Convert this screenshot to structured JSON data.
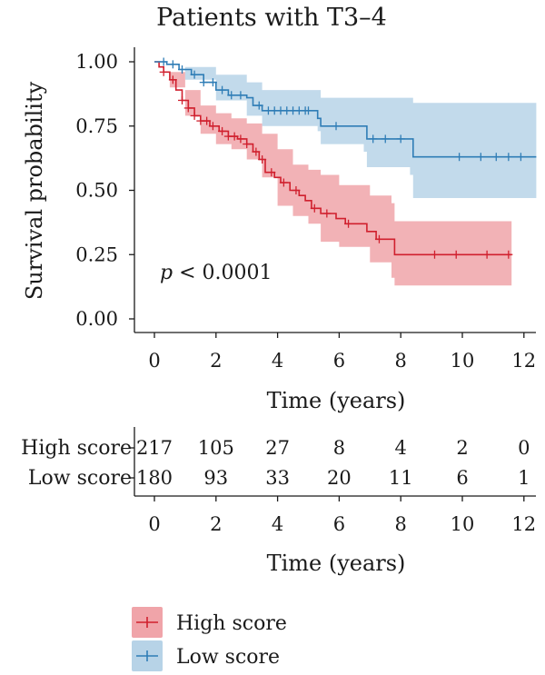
{
  "chart_data": {
    "type": "line",
    "subtype": "kaplan-meier",
    "title": "Patients with T3–4",
    "xlabel": "Time (years)",
    "ylabel": "Survival probability",
    "xlim": [
      0,
      12.4
    ],
    "ylim": [
      0,
      1.0
    ],
    "x_ticks": [
      "0",
      "2",
      "4",
      "6",
      "8",
      "10",
      "12"
    ],
    "y_ticks": [
      "0.00",
      "0.25",
      "0.50",
      "0.75",
      "1.00"
    ],
    "annotation": {
      "p_symbol": "p",
      "p_rest": " < 0.0001"
    },
    "grid": false,
    "legend_position": "bottom",
    "series": [
      {
        "name": "High score",
        "color": "#d0202e",
        "band_color": "#f0a4a9",
        "curve": [
          [
            0,
            1.0
          ],
          [
            0.15,
            0.98
          ],
          [
            0.3,
            0.96
          ],
          [
            0.5,
            0.93
          ],
          [
            0.7,
            0.89
          ],
          [
            0.9,
            0.85
          ],
          [
            1.1,
            0.82
          ],
          [
            1.3,
            0.79
          ],
          [
            1.5,
            0.77
          ],
          [
            1.8,
            0.75
          ],
          [
            2.1,
            0.73
          ],
          [
            2.4,
            0.71
          ],
          [
            2.7,
            0.7
          ],
          [
            3.0,
            0.68
          ],
          [
            3.2,
            0.65
          ],
          [
            3.4,
            0.62
          ],
          [
            3.6,
            0.57
          ],
          [
            3.9,
            0.55
          ],
          [
            4.1,
            0.53
          ],
          [
            4.4,
            0.5
          ],
          [
            4.7,
            0.48
          ],
          [
            4.9,
            0.46
          ],
          [
            5.1,
            0.43
          ],
          [
            5.4,
            0.41
          ],
          [
            5.9,
            0.39
          ],
          [
            6.2,
            0.37
          ],
          [
            6.9,
            0.34
          ],
          [
            7.2,
            0.31
          ],
          [
            7.8,
            0.25
          ],
          [
            11.6,
            0.25
          ]
        ],
        "upper": [
          [
            0,
            1.0
          ],
          [
            0.5,
            0.96
          ],
          [
            1.0,
            0.89
          ],
          [
            1.5,
            0.83
          ],
          [
            2.0,
            0.8
          ],
          [
            2.5,
            0.78
          ],
          [
            3.0,
            0.76
          ],
          [
            3.5,
            0.72
          ],
          [
            4.0,
            0.66
          ],
          [
            4.5,
            0.6
          ],
          [
            5.0,
            0.58
          ],
          [
            5.4,
            0.56
          ],
          [
            6.0,
            0.52
          ],
          [
            7.0,
            0.48
          ],
          [
            7.7,
            0.45
          ],
          [
            7.8,
            0.38
          ],
          [
            11.6,
            0.38
          ]
        ],
        "lower": [
          [
            0,
            1.0
          ],
          [
            0.5,
            0.9
          ],
          [
            1.0,
            0.79
          ],
          [
            1.5,
            0.72
          ],
          [
            2.0,
            0.68
          ],
          [
            2.5,
            0.66
          ],
          [
            3.0,
            0.62
          ],
          [
            3.5,
            0.55
          ],
          [
            4.0,
            0.44
          ],
          [
            4.5,
            0.4
          ],
          [
            5.0,
            0.37
          ],
          [
            5.4,
            0.3
          ],
          [
            6.0,
            0.28
          ],
          [
            7.0,
            0.22
          ],
          [
            7.7,
            0.16
          ],
          [
            7.8,
            0.13
          ],
          [
            11.6,
            0.13
          ]
        ],
        "censor_x": [
          0.3,
          0.6,
          0.9,
          1.1,
          1.3,
          1.5,
          1.7,
          1.9,
          2.2,
          2.4,
          2.6,
          2.8,
          3.0,
          3.3,
          3.5,
          3.8,
          4.2,
          4.6,
          5.2,
          5.6,
          6.3,
          7.3,
          9.1,
          9.8,
          10.8,
          11.5
        ]
      },
      {
        "name": "Low score",
        "color": "#2f7db6",
        "band_color": "#b7d3e7",
        "curve": [
          [
            0,
            1.0
          ],
          [
            0.4,
            0.99
          ],
          [
            0.8,
            0.97
          ],
          [
            1.2,
            0.95
          ],
          [
            1.6,
            0.92
          ],
          [
            2.0,
            0.89
          ],
          [
            2.4,
            0.87
          ],
          [
            3.0,
            0.86
          ],
          [
            3.2,
            0.83
          ],
          [
            3.5,
            0.81
          ],
          [
            5.2,
            0.81
          ],
          [
            5.3,
            0.78
          ],
          [
            5.4,
            0.75
          ],
          [
            6.7,
            0.75
          ],
          [
            6.9,
            0.7
          ],
          [
            8.3,
            0.7
          ],
          [
            8.4,
            0.63
          ],
          [
            12.4,
            0.63
          ]
        ],
        "upper": [
          [
            0,
            1.0
          ],
          [
            1.0,
            0.98
          ],
          [
            2.0,
            0.95
          ],
          [
            3.0,
            0.92
          ],
          [
            3.5,
            0.89
          ],
          [
            5.3,
            0.89
          ],
          [
            5.4,
            0.86
          ],
          [
            8.3,
            0.86
          ],
          [
            8.4,
            0.84
          ],
          [
            12.4,
            0.84
          ]
        ],
        "lower": [
          [
            0,
            1.0
          ],
          [
            1.0,
            0.93
          ],
          [
            2.0,
            0.85
          ],
          [
            3.0,
            0.79
          ],
          [
            3.5,
            0.75
          ],
          [
            5.3,
            0.73
          ],
          [
            5.4,
            0.68
          ],
          [
            6.8,
            0.65
          ],
          [
            6.9,
            0.59
          ],
          [
            8.3,
            0.56
          ],
          [
            8.4,
            0.47
          ],
          [
            12.4,
            0.47
          ]
        ],
        "censor_x": [
          0.3,
          0.6,
          0.9,
          1.3,
          1.6,
          1.9,
          2.2,
          2.5,
          2.8,
          3.4,
          3.7,
          3.9,
          4.1,
          4.3,
          4.5,
          4.7,
          4.9,
          5.0,
          5.9,
          7.1,
          7.5,
          8.0,
          9.9,
          10.6,
          11.1,
          11.5,
          11.9
        ]
      }
    ]
  },
  "risk_table": {
    "xlabel": "Time (years)",
    "x_ticks": [
      "0",
      "2",
      "4",
      "6",
      "8",
      "10",
      "12"
    ],
    "rows": [
      {
        "name": "High score",
        "color": "#d0202e",
        "values": [
          "217",
          "105",
          "27",
          "8",
          "4",
          "2",
          "0"
        ]
      },
      {
        "name": "Low score",
        "color": "#2f7db6",
        "values": [
          "180",
          "93",
          "33",
          "20",
          "11",
          "6",
          "1"
        ]
      }
    ]
  },
  "legend": [
    {
      "name": "High score",
      "color": "#d0202e",
      "band_color": "#f0a4a9"
    },
    {
      "name": "Low score",
      "color": "#2f7db6",
      "band_color": "#b7d3e7"
    }
  ]
}
